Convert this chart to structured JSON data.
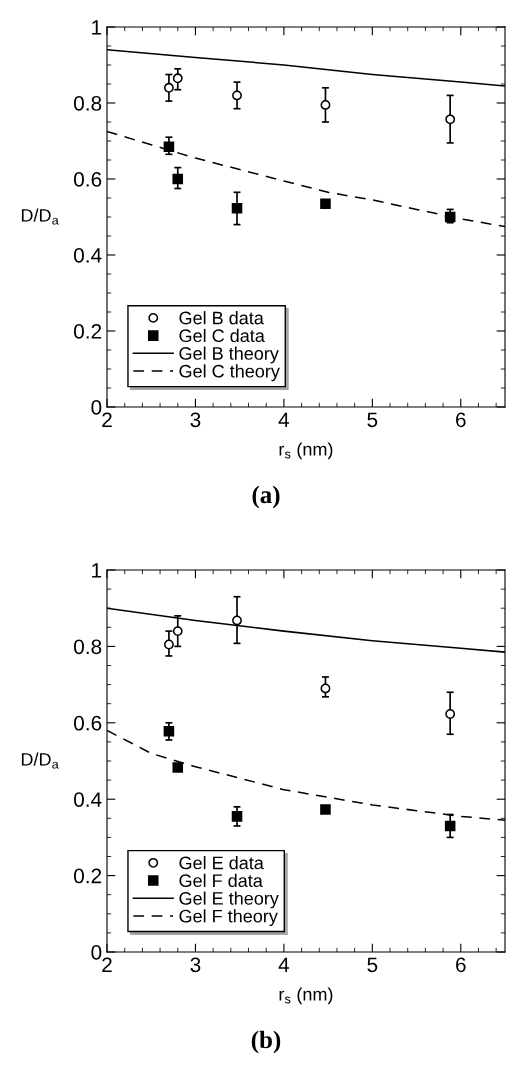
{
  "chart_data": [
    {
      "type": "scatter",
      "xlabel": "r$_{s}$ (nm)",
      "ylabel": "D/D$_{a}$",
      "xlim": [
        2,
        6.5
      ],
      "ylim": [
        0,
        1
      ],
      "xticks": [
        2,
        3,
        4,
        5,
        6
      ],
      "yticks": [
        0,
        0.2,
        0.4,
        0.6,
        0.8,
        1
      ],
      "legend": "bottom left",
      "grid": false,
      "annotations": [
        "(a)"
      ],
      "series": [
        {
          "name": "Gel B data",
          "marker": "circle",
          "color": "#000000",
          "x": [
            2.7,
            2.8,
            3.47,
            4.47,
            5.88
          ],
          "values": [
            0.84,
            0.865,
            0.82,
            0.795,
            0.757
          ],
          "errors": [
            [
              0.805,
              0.875
            ],
            [
              0.835,
              0.89
            ],
            [
              0.785,
              0.855
            ],
            [
              0.75,
              0.84
            ],
            [
              0.695,
              0.82
            ]
          ]
        },
        {
          "name": "Gel C data",
          "marker": "square",
          "color": "#000000",
          "x": [
            2.7,
            2.8,
            3.47,
            4.47,
            5.88
          ],
          "values": [
            0.685,
            0.6,
            0.523,
            0.535,
            0.5
          ],
          "errors": [
            [
              0.665,
              0.71
            ],
            [
              0.575,
              0.63
            ],
            [
              0.48,
              0.565
            ],
            null,
            [
              0.485,
              0.52
            ]
          ]
        },
        {
          "name": "Gel B theory",
          "type": "line",
          "marker": "none",
          "line_style": "solid",
          "color": "#000000",
          "x": [
            2,
            3,
            4,
            5,
            6,
            6.5
          ],
          "values": [
            0.94,
            0.92,
            0.9,
            0.875,
            0.855,
            0.845
          ]
        },
        {
          "name": "Gel C theory",
          "type": "line",
          "marker": "none",
          "line_style": "dashed",
          "color": "#000000",
          "x": [
            2,
            2.5,
            3,
            3.5,
            4,
            4.5,
            5,
            5.5,
            6,
            6.5
          ],
          "values": [
            0.725,
            0.69,
            0.655,
            0.625,
            0.595,
            0.565,
            0.545,
            0.52,
            0.495,
            0.475
          ]
        }
      ]
    },
    {
      "type": "scatter",
      "xlabel": "r$_{s}$ (nm)",
      "ylabel": "D/D$_{a}$",
      "xlim": [
        2,
        6.5
      ],
      "ylim": [
        0,
        1
      ],
      "xticks": [
        2,
        3,
        4,
        5,
        6
      ],
      "yticks": [
        0,
        0.2,
        0.4,
        0.6,
        0.8,
        1
      ],
      "legend": "bottom left",
      "grid": false,
      "annotations": [
        "(b)"
      ],
      "series": [
        {
          "name": "Gel E data",
          "marker": "circle",
          "color": "#000000",
          "x": [
            2.7,
            2.8,
            3.47,
            4.47,
            5.88
          ],
          "values": [
            0.805,
            0.84,
            0.868,
            0.69,
            0.623
          ],
          "errors": [
            [
              0.775,
              0.84
            ],
            [
              0.8,
              0.88
            ],
            [
              0.808,
              0.93
            ],
            [
              0.668,
              0.72
            ],
            [
              0.57,
              0.68
            ]
          ]
        },
        {
          "name": "Gel F data",
          "marker": "square",
          "color": "#000000",
          "x": [
            2.7,
            2.8,
            3.47,
            4.47,
            5.88
          ],
          "values": [
            0.578,
            0.483,
            0.355,
            0.373,
            0.33
          ],
          "errors": [
            [
              0.555,
              0.6
            ],
            null,
            [
              0.33,
              0.38
            ],
            null,
            [
              0.3,
              0.36
            ]
          ]
        },
        {
          "name": "Gel E theory",
          "type": "line",
          "marker": "none",
          "line_style": "solid",
          "color": "#000000",
          "x": [
            2,
            3,
            4,
            5,
            6,
            6.5
          ],
          "values": [
            0.9,
            0.868,
            0.84,
            0.815,
            0.795,
            0.785
          ]
        },
        {
          "name": "Gel F theory",
          "type": "line",
          "marker": "none",
          "line_style": "dashed",
          "color": "#000000",
          "x": [
            2,
            2.5,
            3,
            3.5,
            4,
            4.5,
            5,
            5.5,
            6,
            6.5
          ],
          "values": [
            0.58,
            0.52,
            0.485,
            0.455,
            0.425,
            0.405,
            0.385,
            0.37,
            0.355,
            0.345
          ]
        }
      ]
    }
  ]
}
